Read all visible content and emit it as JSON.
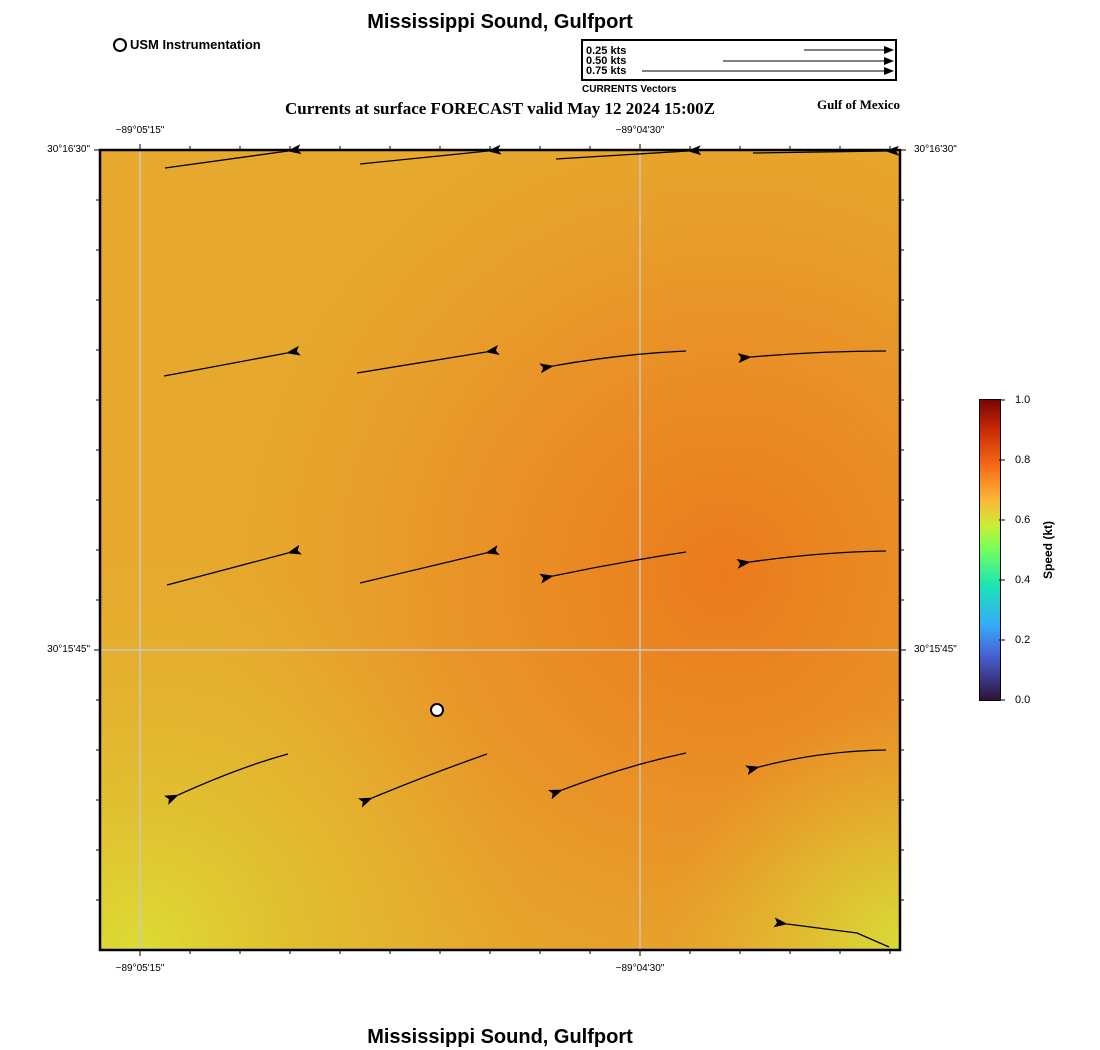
{
  "header": {
    "title": "Mississippi Sound, Gulfport",
    "subtitle": "Currents at surface FORECAST valid May 12 2024 15:00Z",
    "region": "Gulf of Mexico",
    "footer_title": "Mississippi Sound, Gulfport"
  },
  "legend": {
    "station_label": "USM Instrumentation",
    "vector_title": "CURRENTS Vectors",
    "scale_labels": [
      "0.25 kts",
      "0.50 kts",
      "0.75 kts"
    ]
  },
  "axes": {
    "lon_ticks": [
      "−89°05'15\"",
      "−89°04'30\""
    ],
    "lat_ticks": [
      "30°16'30\"",
      "30°15'45\""
    ]
  },
  "colorbar": {
    "label": "Speed (kt)",
    "ticks": [
      "1.0",
      "0.8",
      "0.6",
      "0.4",
      "0.2",
      "0.0"
    ],
    "range": [
      0,
      1
    ]
  },
  "map_data": {
    "colors": {
      "field_low": "#dcdc34",
      "field_mid": "#e9a02c",
      "field_high": "#eb7b1e",
      "grid": "#c8c8c8",
      "station_fill": "#ffffff"
    }
  }
}
